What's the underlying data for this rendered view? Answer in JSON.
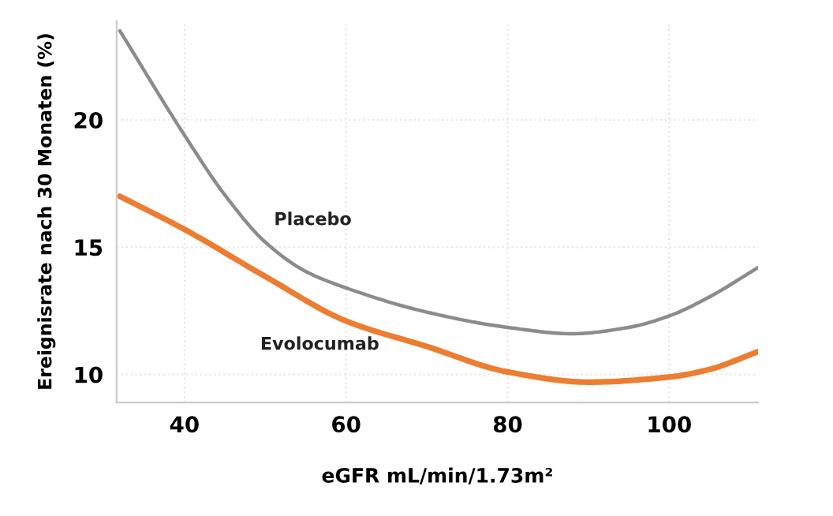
{
  "chart_data": {
    "type": "line",
    "xlabel": "eGFR mL/min/1.73m²",
    "ylabel": "Ereignisrate nach 30 Monaten (%)",
    "xlim": [
      31.6,
      111
    ],
    "ylim": [
      8.9,
      23.9
    ],
    "xticks": [
      40,
      60,
      80,
      100
    ],
    "yticks": [
      10,
      15,
      20
    ],
    "grid": true,
    "marker": "none",
    "line_style": "solid",
    "series": [
      {
        "name": "Placebo",
        "color": "#8c8c8c",
        "x": [
          32,
          40,
          45,
          50,
          55,
          60,
          70,
          80,
          88,
          95,
          100,
          105,
          111
        ],
        "values": [
          23.5,
          19.4,
          17.05,
          15.2,
          14.05,
          13.4,
          12.45,
          11.85,
          11.6,
          11.85,
          12.3,
          13.05,
          14.2
        ]
      },
      {
        "name": "Evolocumab",
        "color": "#ed7d31",
        "x": [
          32,
          40,
          50,
          60,
          70,
          80,
          90,
          100,
          105,
          111
        ],
        "values": [
          17.0,
          15.7,
          13.85,
          12.1,
          11.1,
          10.1,
          9.7,
          9.9,
          10.2,
          10.9
        ]
      }
    ]
  }
}
